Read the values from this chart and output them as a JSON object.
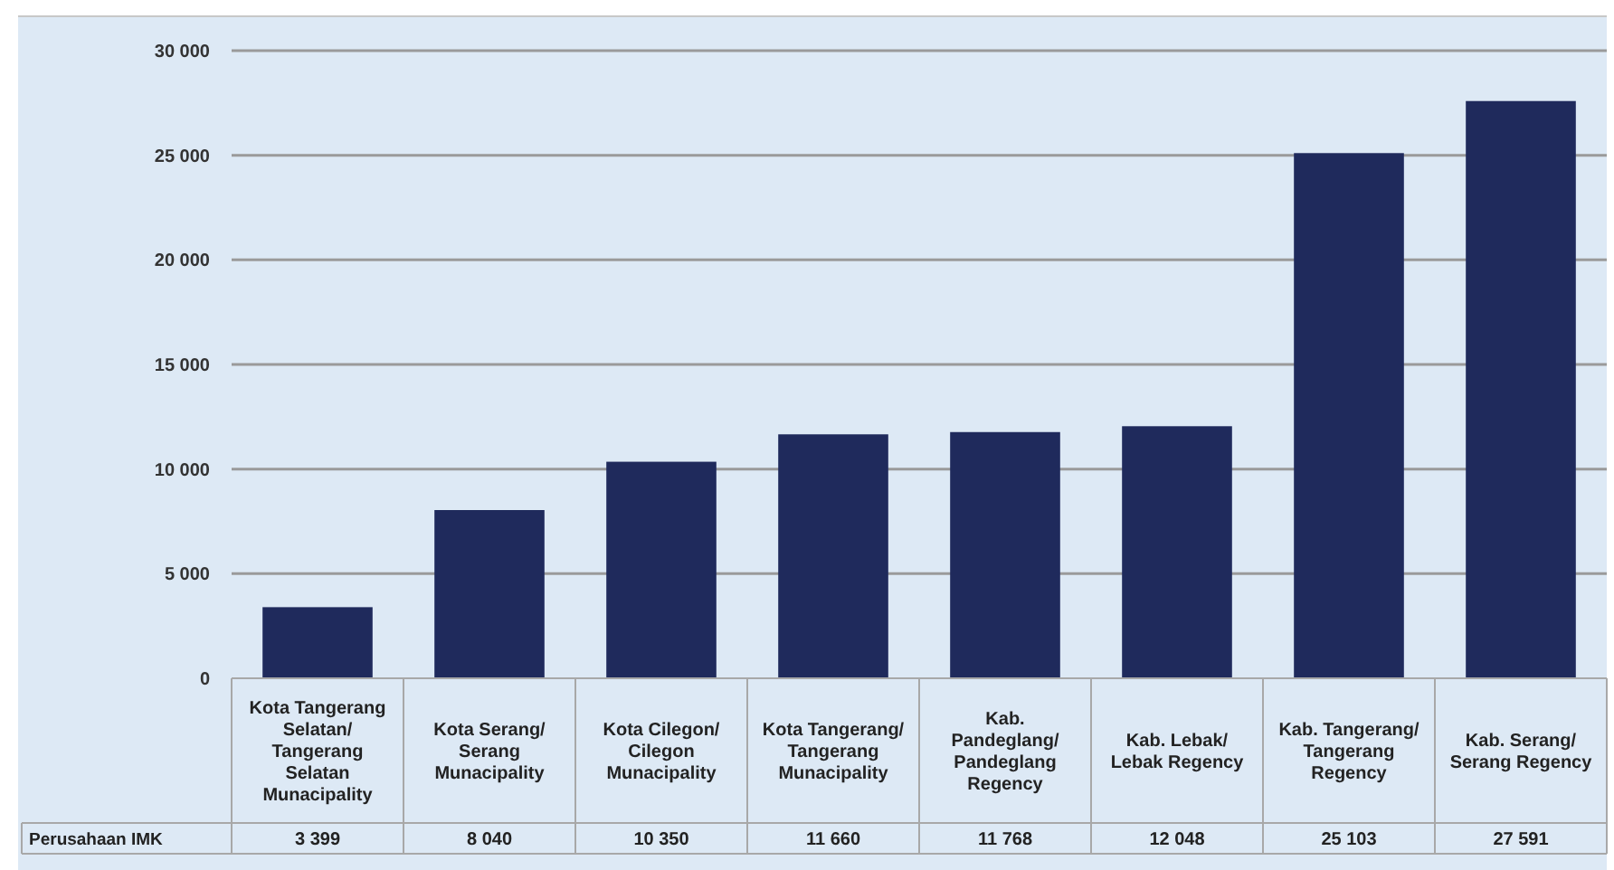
{
  "chart_data": {
    "type": "bar",
    "categories": [
      "Kota Tangerang Selatan/ Tangerang Selatan Munacipality",
      "Kota Serang/ Serang Munacipality",
      "Kota Cilegon/ Cilegon Munacipality",
      "Kota Tangerang/ Tangerang Munacipality",
      "Kab. Pandeglang/ Pandeglang Regency",
      "Kab. Lebak/ Lebak Regency",
      "Kab. Tangerang/ Tangerang Regency",
      "Kab. Serang/ Serang Regency"
    ],
    "series": [
      {
        "name": "Perusahaan IMK",
        "color": "#1f2a5c",
        "values": [
          3399,
          8040,
          10350,
          11660,
          11768,
          12048,
          25103,
          27591
        ]
      }
    ],
    "value_labels": [
      "3 399",
      "8 040",
      "10 350",
      "11 660",
      "11 768",
      "12 048",
      "25 103",
      "27 591"
    ],
    "data_labels": true,
    "ylim": [
      0,
      30000
    ],
    "yticks": [
      {
        "value": 0,
        "label": "0"
      },
      {
        "value": 5000,
        "label": "5 000"
      },
      {
        "value": 10000,
        "label": "10 000"
      },
      {
        "value": 15000,
        "label": "15 000"
      },
      {
        "value": 20000,
        "label": "20 000"
      },
      {
        "value": 25000,
        "label": "25 000"
      },
      {
        "value": 30000,
        "label": "30 000"
      }
    ],
    "grid": "y"
  }
}
